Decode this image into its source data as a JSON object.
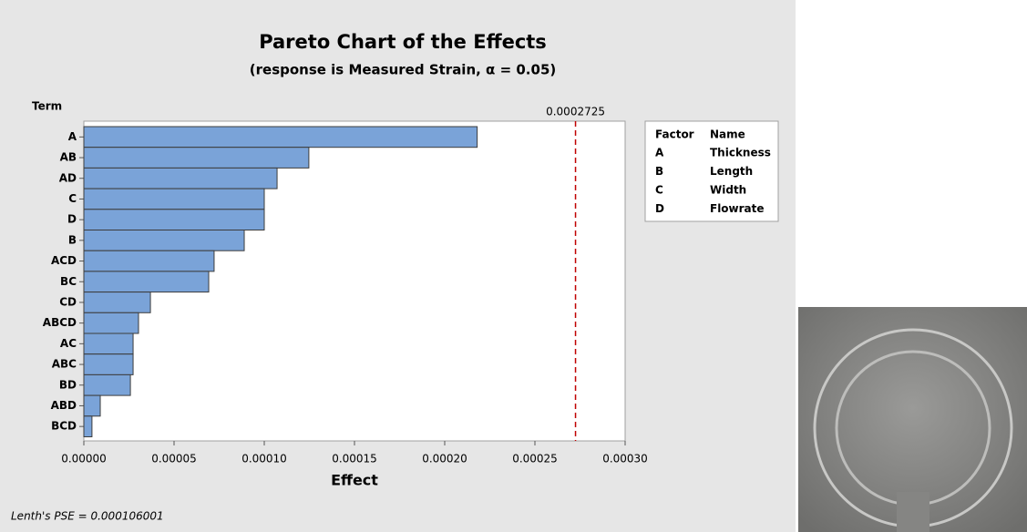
{
  "chart_data": {
    "type": "bar",
    "orientation": "horizontal",
    "title": "Pareto Chart of the Effects",
    "subtitle": "(response is Measured Strain, α = 0.05)",
    "y_label": "Term",
    "x_label": "Effect",
    "categories": [
      "A",
      "AB",
      "AD",
      "C",
      "D",
      "B",
      "ACD",
      "BC",
      "CD",
      "ABCD",
      "AC",
      "ABC",
      "BD",
      "ABD",
      "BCD"
    ],
    "values": [
      0.000218,
      0.0001247,
      0.0001071,
      0.0001,
      0.0001,
      8.89e-05,
      7.22e-05,
      6.92e-05,
      3.69e-05,
      3.03e-05,
      2.73e-05,
      2.73e-05,
      2.58e-05,
      9.1e-06,
      4.5e-06
    ],
    "color": "#7aa3d8",
    "xlim": [
      0,
      0.0003
    ],
    "xticks": [
      {
        "value": 0,
        "label": "0.00000"
      },
      {
        "value": 5e-05,
        "label": "0.00005"
      },
      {
        "value": 0.0001,
        "label": "0.00010"
      },
      {
        "value": 0.00015,
        "label": "0.00015"
      },
      {
        "value": 0.0002,
        "label": "0.00020"
      },
      {
        "value": 0.00025,
        "label": "0.00025"
      },
      {
        "value": 0.0003,
        "label": "0.00030"
      }
    ],
    "reference_line": 0.0002725,
    "reference_color": "#c00000",
    "legend_table": {
      "headers": [
        "Factor",
        "Name"
      ],
      "rows": [
        [
          "A",
          "Thickness"
        ],
        [
          "B",
          "Length"
        ],
        [
          "C",
          "Width"
        ],
        [
          "D",
          "Flowrate"
        ]
      ]
    },
    "footnote": "Lenth's PSE = 0.000106001"
  }
}
